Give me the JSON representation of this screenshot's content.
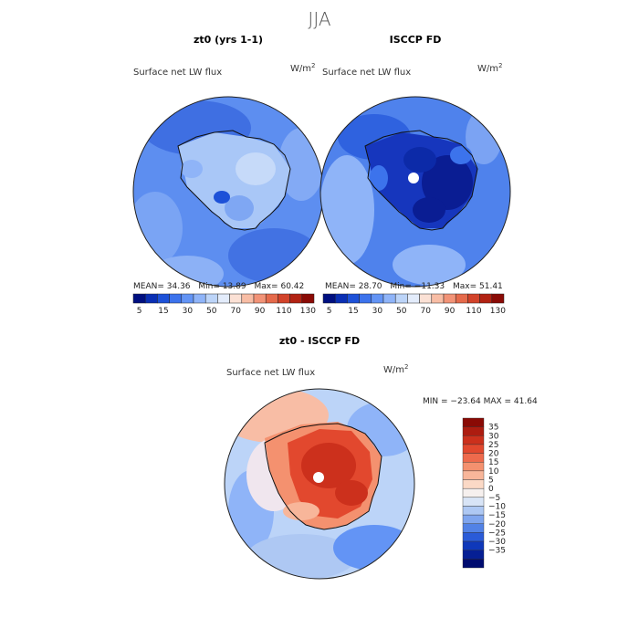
{
  "page": {
    "title": "JJA"
  },
  "chart_data": [
    {
      "type": "heatmap",
      "projection": "south-polar-stereographic",
      "title": "zt0 (yrs 1-1)",
      "subtitle": "Surface net LW flux",
      "units": "W/m²",
      "units_base": "W/m",
      "units_sup": "2",
      "stats": {
        "mean_label": "MEAN=",
        "mean": "34.36",
        "min_label": "Min=",
        "min": "13.89",
        "max_label": "Max=",
        "max": "60.42"
      },
      "colorbar": {
        "orientation": "horizontal",
        "ticks": [
          "5",
          "15",
          "30",
          "50",
          "70",
          "90",
          "110",
          "130"
        ],
        "colors": [
          "#000f80",
          "#0a2fb4",
          "#1d51d8",
          "#3c73ec",
          "#6394f5",
          "#8fb4f8",
          "#bcd4f8",
          "#e3ecfb",
          "#fbe1d5",
          "#f8bda5",
          "#f29377",
          "#e56a4b",
          "#d2432a",
          "#b22212",
          "#8a0a05"
        ]
      }
    },
    {
      "type": "heatmap",
      "projection": "south-polar-stereographic",
      "title": "ISCCP FD",
      "subtitle": "Surface net LW flux",
      "units": "W/m²",
      "units_base": "W/m",
      "units_sup": "2",
      "stats": {
        "mean_label": "MEAN=",
        "mean": "28.70",
        "min_label": "Min=",
        "min": "−11.33",
        "max_label": "Max=",
        "max": "51.41"
      },
      "colorbar": {
        "orientation": "horizontal",
        "ticks": [
          "5",
          "15",
          "30",
          "50",
          "70",
          "90",
          "110",
          "130"
        ],
        "colors": [
          "#000f80",
          "#0a2fb4",
          "#1d51d8",
          "#3c73ec",
          "#6394f5",
          "#8fb4f8",
          "#bcd4f8",
          "#e3ecfb",
          "#fbe1d5",
          "#f8bda5",
          "#f29377",
          "#e56a4b",
          "#d2432a",
          "#b22212",
          "#8a0a05"
        ]
      }
    },
    {
      "type": "heatmap",
      "projection": "south-polar-stereographic",
      "title": "zt0 - ISCCP FD",
      "subtitle": "Surface net LW flux",
      "units": "W/m²",
      "units_base": "W/m",
      "units_sup": "2",
      "stats": {
        "text": "MIN = −23.64 MAX =  41.64"
      },
      "colorbar": {
        "orientation": "vertical",
        "ticks": [
          "35",
          "30",
          "25",
          "20",
          "15",
          "10",
          "5",
          "0",
          "−5",
          "−10",
          "−15",
          "−20",
          "−25",
          "−30",
          "−35"
        ],
        "colors": [
          "#8a0a05",
          "#ad1c10",
          "#cc301c",
          "#e2482e",
          "#ee6a4c",
          "#f4916f",
          "#f8b69a",
          "#fbd9c6",
          "#f6f0ee",
          "#d8e4f6",
          "#aec8f3",
          "#7fa5ee",
          "#5282e6",
          "#2a5bd8",
          "#0f38ba",
          "#061f94",
          "#000c70"
        ]
      }
    }
  ]
}
